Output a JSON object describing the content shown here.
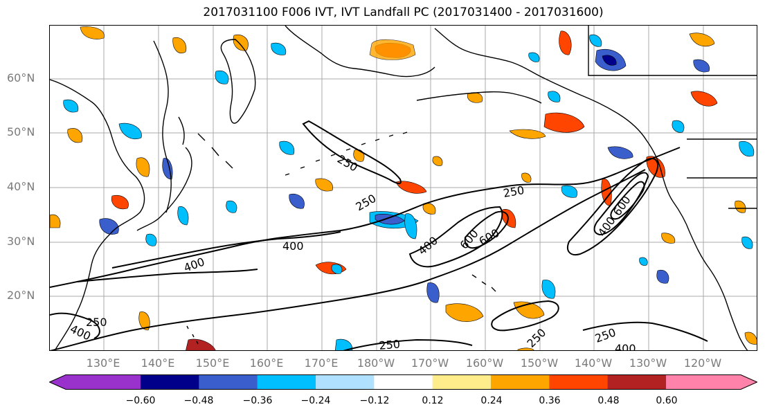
{
  "title": "2017031100 F006 IVT, IVT Landfall PC (2017031400 - 2017031600)",
  "latitude_labels": [
    "60°N",
    "50°N",
    "40°N",
    "30°N",
    "20°N"
  ],
  "longitude_labels": [
    "130°E",
    "140°E",
    "150°E",
    "160°E",
    "170°E",
    "180°W",
    "170°W",
    "160°W",
    "150°W",
    "140°W",
    "130°W",
    "120°W"
  ],
  "colorbar": {
    "ticks": [
      "−0.60",
      "−0.48",
      "−0.36",
      "−0.24",
      "−0.12",
      "0.12",
      "0.24",
      "0.36",
      "0.48",
      "0.60"
    ],
    "colors": [
      "#9932cc",
      "#00008b",
      "#3a5fcd",
      "#00bfff",
      "#b0e2ff",
      "#ffffff",
      "#ffec8b",
      "#ffa500",
      "#ff4500",
      "#b22222",
      "#ff82ab"
    ]
  },
  "contour_labels": [
    {
      "text": "250"
    },
    {
      "text": "250"
    },
    {
      "text": "250"
    },
    {
      "text": "250"
    },
    {
      "text": "250"
    },
    {
      "text": "250"
    },
    {
      "text": "250"
    },
    {
      "text": "400"
    },
    {
      "text": "400"
    },
    {
      "text": "400"
    },
    {
      "text": "400"
    },
    {
      "text": "400"
    },
    {
      "text": "400"
    },
    {
      "text": "600"
    },
    {
      "text": "600"
    },
    {
      "text": "600"
    }
  ]
}
